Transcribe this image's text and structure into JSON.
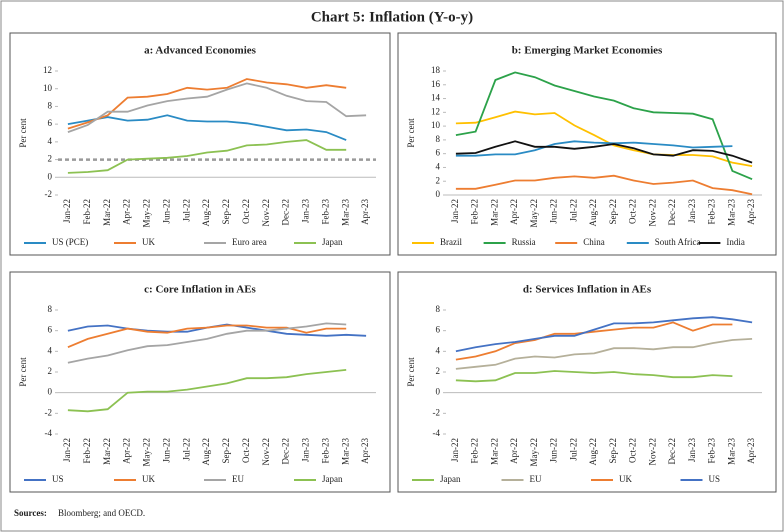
{
  "title": "Chart 5: Inflation (Y-o-y)",
  "source_label": "Sources:",
  "source": "Bloomberg; and OECD.",
  "chart_data": [
    {
      "type": "line",
      "title": "a: Advanced Economies",
      "ylabel": "Per cent",
      "categories": [
        "Jan-22",
        "Feb-22",
        "Mar-22",
        "Apr-22",
        "May-22",
        "Jun-22",
        "Jul-22",
        "Aug-22",
        "Sep-22",
        "Oct-22",
        "Nov-22",
        "Dec-22",
        "Jan-23",
        "Feb-23",
        "Mar-23",
        "Apr-23"
      ],
      "ylim": [
        -2,
        12
      ],
      "yticks": [
        -2,
        0,
        2,
        4,
        6,
        8,
        10,
        12
      ],
      "reference_line": {
        "value": 2,
        "color": "#9a9a9a"
      },
      "series": [
        {
          "name": "US (PCE)",
          "color": "#2a8bc4",
          "values": [
            6.0,
            6.4,
            6.8,
            6.4,
            6.5,
            7.0,
            6.4,
            6.3,
            6.3,
            6.1,
            5.7,
            5.3,
            5.4,
            5.1,
            4.2,
            null
          ]
        },
        {
          "name": "UK",
          "color": "#ed7d31",
          "values": [
            5.5,
            6.2,
            7.0,
            9.0,
            9.1,
            9.4,
            10.1,
            9.9,
            10.1,
            11.1,
            10.7,
            10.5,
            10.1,
            10.4,
            10.1,
            null
          ]
        },
        {
          "name": "Euro area",
          "color": "#a5a5a5",
          "values": [
            5.1,
            5.9,
            7.4,
            7.4,
            8.1,
            8.6,
            8.9,
            9.1,
            9.9,
            10.6,
            10.1,
            9.2,
            8.6,
            8.5,
            6.9,
            7.0
          ]
        },
        {
          "name": "Japan",
          "color": "#8cc152",
          "values": [
            0.5,
            0.6,
            0.8,
            2.0,
            2.1,
            2.2,
            2.4,
            2.8,
            3.0,
            3.6,
            3.7,
            4.0,
            4.2,
            3.1,
            3.1,
            null
          ]
        }
      ]
    },
    {
      "type": "line",
      "title": "b: Emerging Market Economies",
      "ylabel": "Per cent",
      "categories": [
        "Jan-22",
        "Feb-22",
        "Mar-22",
        "Apr-22",
        "May-22",
        "Jun-22",
        "Jul-22",
        "Aug-22",
        "Sep-22",
        "Oct-22",
        "Nov-22",
        "Dec-22",
        "Jan-23",
        "Feb-23",
        "Mar-23",
        "Apr-23"
      ],
      "ylim": [
        0,
        18
      ],
      "yticks": [
        0,
        2,
        4,
        6,
        8,
        10,
        12,
        14,
        16,
        18
      ],
      "series": [
        {
          "name": "Brazil",
          "color": "#ffc000",
          "values": [
            10.4,
            10.5,
            11.3,
            12.1,
            11.7,
            11.9,
            10.1,
            8.7,
            7.2,
            6.5,
            5.9,
            5.8,
            5.8,
            5.6,
            4.7,
            4.2
          ]
        },
        {
          "name": "Russia",
          "color": "#2ca24a",
          "values": [
            8.7,
            9.2,
            16.7,
            17.8,
            17.1,
            15.9,
            15.1,
            14.3,
            13.7,
            12.6,
            12.0,
            11.9,
            11.8,
            11.0,
            3.5,
            2.3
          ]
        },
        {
          "name": "China",
          "color": "#ed7d31",
          "values": [
            0.9,
            0.9,
            1.5,
            2.1,
            2.1,
            2.5,
            2.7,
            2.5,
            2.8,
            2.1,
            1.6,
            1.8,
            2.1,
            1.0,
            0.7,
            0.1
          ]
        },
        {
          "name": "South Africa",
          "color": "#2a8bc4",
          "values": [
            5.7,
            5.7,
            5.9,
            5.9,
            6.5,
            7.4,
            7.8,
            7.6,
            7.5,
            7.6,
            7.4,
            7.2,
            6.9,
            7.0,
            7.1,
            null
          ]
        },
        {
          "name": "India",
          "color": "#111111",
          "values": [
            6.0,
            6.1,
            7.0,
            7.8,
            7.0,
            7.0,
            6.7,
            7.0,
            7.4,
            6.8,
            5.9,
            5.7,
            6.5,
            6.4,
            5.7,
            4.7
          ]
        }
      ]
    },
    {
      "type": "line",
      "title": "c: Core Inflation in AEs",
      "ylabel": "Per cent",
      "categories": [
        "Jan-22",
        "Feb-22",
        "Mar-22",
        "Apr-22",
        "May-22",
        "Jun-22",
        "Jul-22",
        "Aug-22",
        "Sep-22",
        "Oct-22",
        "Nov-22",
        "Dec-22",
        "Jan-23",
        "Feb-23",
        "Mar-23",
        "Apr-23"
      ],
      "ylim": [
        -4,
        8
      ],
      "yticks": [
        -4,
        -2,
        0,
        2,
        4,
        6,
        8
      ],
      "series": [
        {
          "name": "US",
          "color": "#4472c4",
          "values": [
            6.0,
            6.4,
            6.5,
            6.2,
            6.0,
            5.9,
            5.9,
            6.3,
            6.6,
            6.3,
            6.0,
            5.7,
            5.6,
            5.5,
            5.6,
            5.5
          ]
        },
        {
          "name": "UK",
          "color": "#ed7d31",
          "values": [
            4.4,
            5.2,
            5.7,
            6.2,
            5.9,
            5.8,
            6.2,
            6.3,
            6.5,
            6.5,
            6.3,
            6.3,
            5.8,
            6.2,
            6.2,
            null
          ]
        },
        {
          "name": "EU",
          "color": "#a5a5a5",
          "values": [
            2.9,
            3.3,
            3.6,
            4.1,
            4.5,
            4.6,
            4.9,
            5.2,
            5.7,
            6.0,
            6.0,
            6.2,
            6.4,
            6.7,
            6.6,
            null
          ]
        },
        {
          "name": "Japan",
          "color": "#8cc152",
          "values": [
            -1.7,
            -1.8,
            -1.6,
            0.0,
            0.1,
            0.1,
            0.3,
            0.6,
            0.9,
            1.4,
            1.4,
            1.5,
            1.8,
            2.0,
            2.2,
            null
          ]
        }
      ]
    },
    {
      "type": "line",
      "title": "d: Services Inflation in AEs",
      "ylabel": "Per cent",
      "categories": [
        "Jan-22",
        "Feb-22",
        "Mar-22",
        "Apr-22",
        "May-22",
        "Jun-22",
        "Jul-22",
        "Aug-22",
        "Sep-22",
        "Oct-22",
        "Nov-22",
        "Dec-22",
        "Jan-23",
        "Feb-23",
        "Mar-23",
        "Apr-23"
      ],
      "ylim": [
        -4,
        8
      ],
      "yticks": [
        -4,
        -2,
        0,
        2,
        4,
        6,
        8
      ],
      "series": [
        {
          "name": "Japan",
          "color": "#8cc152",
          "values": [
            1.2,
            1.1,
            1.2,
            1.9,
            1.9,
            2.1,
            2.0,
            1.9,
            2.0,
            1.8,
            1.7,
            1.5,
            1.5,
            1.7,
            1.6,
            null
          ]
        },
        {
          "name": "EU",
          "color": "#b5b09a",
          "values": [
            2.3,
            2.5,
            2.7,
            3.3,
            3.5,
            3.4,
            3.7,
            3.8,
            4.3,
            4.3,
            4.2,
            4.4,
            4.4,
            4.8,
            5.1,
            5.2
          ]
        },
        {
          "name": "UK",
          "color": "#ed7d31",
          "values": [
            3.2,
            3.5,
            4.0,
            4.8,
            5.1,
            5.7,
            5.7,
            5.9,
            6.1,
            6.3,
            6.3,
            6.8,
            6.0,
            6.6,
            6.6,
            null
          ]
        },
        {
          "name": "US",
          "color": "#4472c4",
          "values": [
            4.0,
            4.4,
            4.7,
            4.9,
            5.2,
            5.5,
            5.5,
            6.1,
            6.7,
            6.7,
            6.8,
            7.0,
            7.2,
            7.3,
            7.1,
            6.8
          ]
        }
      ]
    }
  ]
}
